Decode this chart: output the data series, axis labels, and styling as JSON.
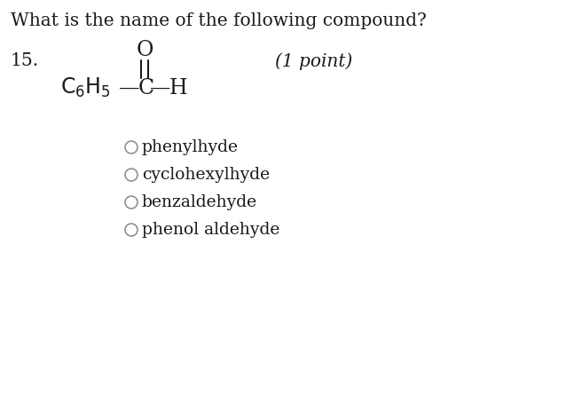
{
  "title": "What is the name of the following compound?",
  "question_number": "15.",
  "point_label": "(1 point)",
  "bg_color": "#ffffff",
  "text_color": "#1a1a1a",
  "title_fontsize": 14.5,
  "question_fontsize": 14.5,
  "options_fontsize": 13.5,
  "struct_fontsize": 17,
  "options": [
    "phenylhyde",
    "cyclohexylhyde",
    "benzaldehyde",
    "phenol aldehyde"
  ]
}
